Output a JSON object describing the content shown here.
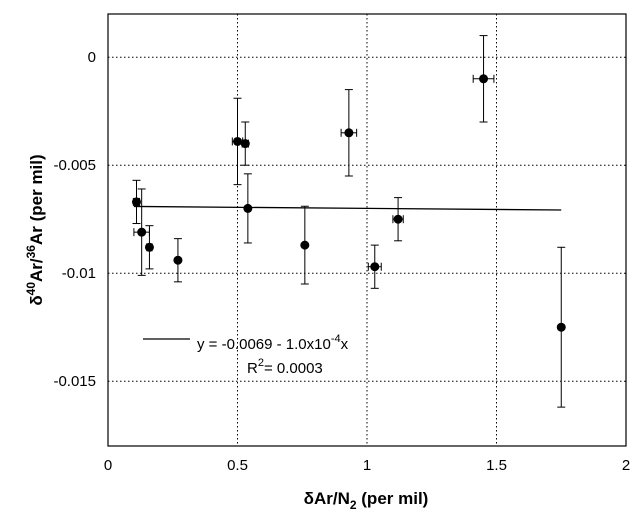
{
  "chart_data": {
    "type": "scatter",
    "xlabel_main": "δAr/N",
    "xlabel_sub": "2",
    "xlabel_tail": " (per mil)",
    "ylabel_delta": "δ",
    "ylabel_sup1": "40",
    "ylabel_mid": "Ar/",
    "ylabel_sup2": "36",
    "ylabel_tail": "Ar (per mil)",
    "xlim": [
      0,
      2
    ],
    "ylim": [
      -0.018,
      0.002
    ],
    "xticks": [
      0,
      0.5,
      1,
      1.5,
      2
    ],
    "xtick_labels": [
      "0",
      "0.5",
      "1",
      "1.5",
      "2"
    ],
    "yticks": [
      0,
      -0.005,
      -0.01,
      -0.015
    ],
    "ytick_labels": [
      "0",
      "-0.005",
      "-0.01",
      "-0.015"
    ],
    "grid": true,
    "points": [
      {
        "x": 0.11,
        "y": -0.0067,
        "xerr": 0.012,
        "yerr": 0.001
      },
      {
        "x": 0.13,
        "y": -0.0081,
        "xerr": 0.03,
        "yerr": 0.002
      },
      {
        "x": 0.16,
        "y": -0.0088,
        "xerr": 0.01,
        "yerr": 0.001
      },
      {
        "x": 0.27,
        "y": -0.0094,
        "xerr": 0.005,
        "yerr": 0.001
      },
      {
        "x": 0.5,
        "y": -0.0039,
        "xerr": 0.02,
        "yerr": 0.002
      },
      {
        "x": 0.53,
        "y": -0.004,
        "xerr": 0.012,
        "yerr": 0.001
      },
      {
        "x": 0.54,
        "y": -0.007,
        "xerr": 0.005,
        "yerr": 0.0016
      },
      {
        "x": 0.76,
        "y": -0.0087,
        "xerr": 0.005,
        "yerr": 0.0018
      },
      {
        "x": 0.93,
        "y": -0.0035,
        "xerr": 0.03,
        "yerr": 0.002
      },
      {
        "x": 1.03,
        "y": -0.0097,
        "xerr": 0.025,
        "yerr": 0.001
      },
      {
        "x": 1.12,
        "y": -0.0075,
        "xerr": 0.02,
        "yerr": 0.001
      },
      {
        "x": 1.45,
        "y": -0.001,
        "xerr": 0.04,
        "yerr": 0.002
      },
      {
        "x": 1.75,
        "y": -0.0125,
        "xerr": 0.005,
        "yerr": 0.0037
      }
    ],
    "fit_line": {
      "x": [
        0.1,
        1.75
      ],
      "intercept": -0.0069,
      "slope": -0.0001
    },
    "annotation": {
      "equation": "y = -0.0069 - 1.0x10",
      "equation_exp": "-4",
      "equation_tail": "x",
      "r2_prefix": "R",
      "r2_exp": "2",
      "r2_value": "= 0.0003"
    }
  }
}
